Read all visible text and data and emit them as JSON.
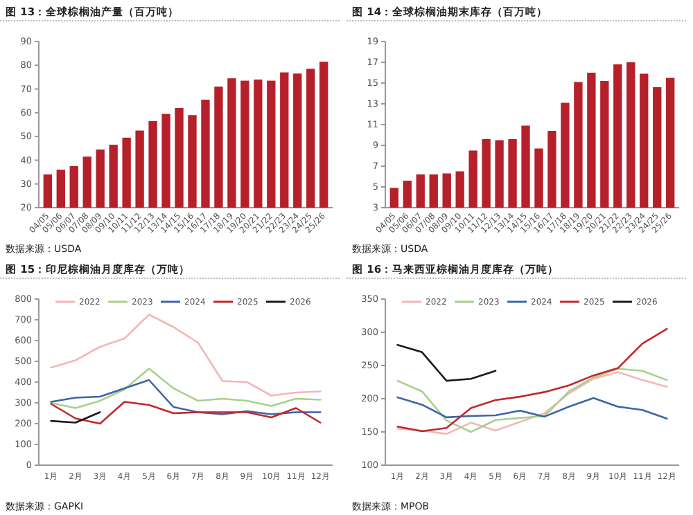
{
  "chart_data": [
    {
      "type": "bar",
      "title": "图 13：全球棕榈油产量（百万吨）",
      "categories": [
        "04/05",
        "05/06",
        "06/07",
        "07/08",
        "08/09",
        "09/10",
        "10/11",
        "11/12",
        "12/13",
        "13/14",
        "14/15",
        "15/16",
        "16/17",
        "17/18",
        "18/19",
        "19/20",
        "20/21",
        "21/22",
        "22/23",
        "23/24",
        "24/25",
        "25/26"
      ],
      "values": [
        34,
        36,
        37.5,
        41.5,
        44.5,
        46.5,
        49.5,
        52.5,
        56.5,
        59.5,
        62,
        59,
        65.5,
        71,
        74.5,
        73.5,
        74,
        73.5,
        77,
        76.5,
        78.5,
        81.5
      ],
      "color": "#b5202a",
      "ylim": [
        20,
        90
      ],
      "yticks": [
        20,
        30,
        40,
        50,
        60,
        70,
        80,
        90
      ],
      "grid": false,
      "annotations": [
        "数据来源：USDA"
      ]
    },
    {
      "type": "bar",
      "title": "图 14：全球棕榈油期末库存（百万吨）",
      "categories": [
        "04/05",
        "05/06",
        "06/07",
        "07/08",
        "08/09",
        "09/10",
        "10/11",
        "11/12",
        "12/13",
        "13/14",
        "14/15",
        "15/16",
        "16/17",
        "17/18",
        "18/19",
        "19/20",
        "20/21",
        "21/22",
        "22/23",
        "23/24",
        "24/25",
        "25/26"
      ],
      "values": [
        4.9,
        5.6,
        6.2,
        6.2,
        6.3,
        6.5,
        8.5,
        9.6,
        9.5,
        9.6,
        10.9,
        8.7,
        10.4,
        13.1,
        15.1,
        16,
        15.2,
        16.8,
        17,
        15.9,
        14.6,
        15.5
      ],
      "color": "#b5202a",
      "ylim": [
        3,
        19
      ],
      "yticks": [
        3,
        5,
        7,
        9,
        11,
        13,
        15,
        17,
        19
      ],
      "grid": false,
      "annotations": [
        "数据来源：USDA"
      ]
    },
    {
      "type": "line",
      "title": "图 15：印尼棕榈油月度库存（万吨）",
      "categories": [
        "1月",
        "2月",
        "3月",
        "4月",
        "5月",
        "6月",
        "7月",
        "8月",
        "9月",
        "10月",
        "11月",
        "12月"
      ],
      "ylim": [
        0,
        800
      ],
      "yticks": [
        0,
        100,
        200,
        300,
        400,
        500,
        600,
        700,
        800
      ],
      "grid": false,
      "legend": "top",
      "marker": "none",
      "line_style": "solid",
      "annotations": [
        "数据来源：GAPKI"
      ],
      "series": [
        {
          "name": "2022",
          "color": "#f4b6b6",
          "values": [
            470,
            505,
            570,
            610,
            725,
            665,
            590,
            405,
            400,
            335,
            350,
            355
          ]
        },
        {
          "name": "2023",
          "color": "#a8d08d",
          "values": [
            300,
            275,
            310,
            365,
            465,
            370,
            310,
            320,
            310,
            285,
            320,
            315
          ]
        },
        {
          "name": "2024",
          "color": "#3c64a8",
          "values": [
            305,
            325,
            330,
            370,
            410,
            280,
            255,
            245,
            260,
            245,
            255,
            255
          ]
        },
        {
          "name": "2025",
          "color": "#c0282d",
          "values": [
            295,
            225,
            200,
            305,
            290,
            250,
            255,
            255,
            255,
            230,
            275,
            205
          ]
        },
        {
          "name": "2026",
          "color": "#1a1a1a",
          "values": [
            213,
            205,
            255,
            null,
            null,
            null,
            null,
            null,
            null,
            null,
            null,
            null
          ]
        }
      ]
    },
    {
      "type": "line",
      "title": "图 16：马来西亚棕榈油月度库存（万吨）",
      "categories": [
        "1月",
        "2月",
        "3月",
        "4月",
        "5月",
        "6月",
        "7月",
        "8月",
        "9月",
        "10月",
        "11月",
        "12月"
      ],
      "ylim": [
        100,
        350
      ],
      "yticks": [
        100,
        150,
        200,
        250,
        300,
        350
      ],
      "grid": false,
      "legend": "top",
      "marker": "none",
      "line_style": "solid",
      "annotations": [
        "数据来源：MPOB"
      ],
      "series": [
        {
          "name": "2022",
          "color": "#f4b6b6",
          "values": [
            155,
            152,
            147,
            164,
            152,
            165,
            178,
            208,
            230,
            240,
            228,
            218
          ]
        },
        {
          "name": "2023",
          "color": "#a8d08d",
          "values": [
            227,
            211,
            167,
            150,
            168,
            171,
            174,
            211,
            232,
            245,
            242,
            228
          ]
        },
        {
          "name": "2024",
          "color": "#3c64a8",
          "values": [
            202,
            191,
            172,
            174,
            175,
            182,
            173,
            188,
            201,
            188,
            183,
            170
          ]
        },
        {
          "name": "2025",
          "color": "#c0282d",
          "values": [
            158,
            151,
            156,
            186,
            198,
            203,
            210,
            220,
            235,
            246,
            283,
            305
          ]
        },
        {
          "name": "2026",
          "color": "#1a1a1a",
          "values": [
            281,
            270,
            227,
            230,
            242,
            null,
            null,
            null,
            null,
            null,
            null,
            null
          ]
        }
      ]
    }
  ]
}
